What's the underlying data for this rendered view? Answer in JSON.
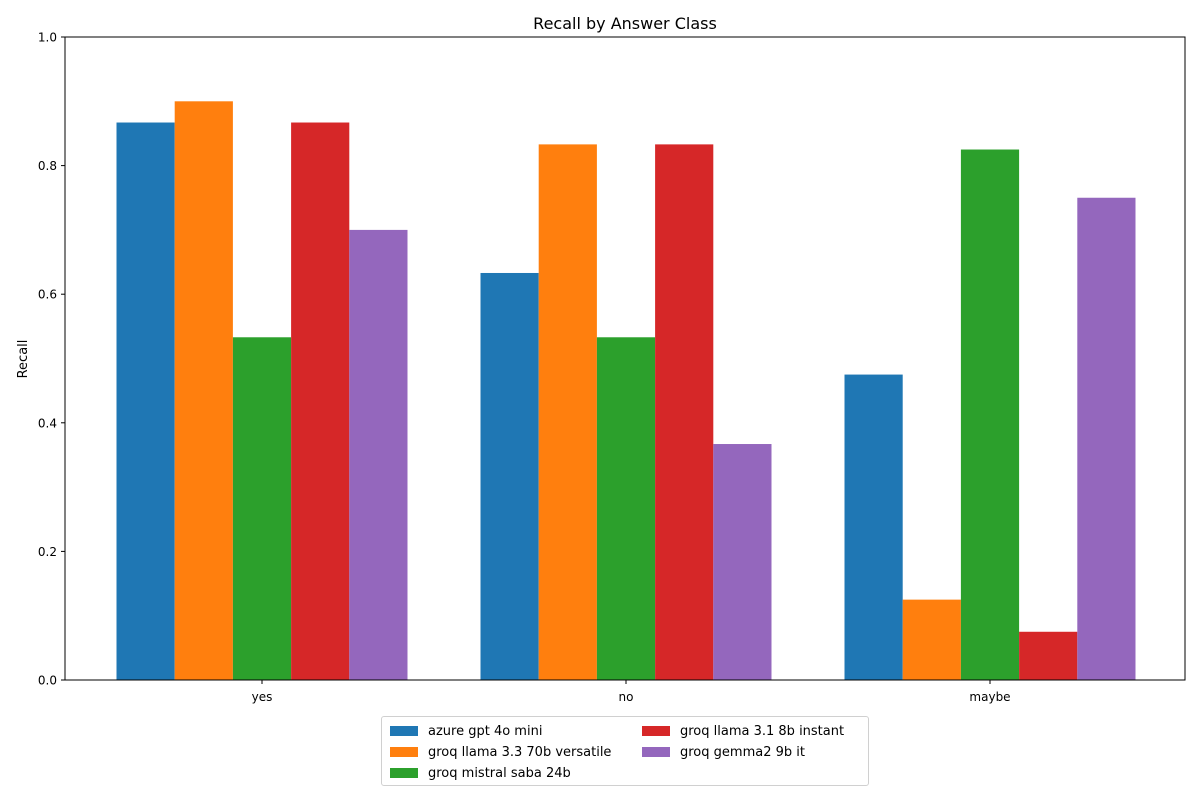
{
  "chart_data": {
    "type": "bar",
    "title": "Recall by Answer Class",
    "xlabel": "",
    "ylabel": "Recall",
    "ylim": [
      0,
      1.0
    ],
    "yticks": [
      "0.0",
      "0.2",
      "0.4",
      "0.6",
      "0.8",
      "1.0"
    ],
    "categories": [
      "yes",
      "no",
      "maybe"
    ],
    "series": [
      {
        "name": "azure gpt 4o mini",
        "color": "#1f77b4",
        "values": [
          0.867,
          0.633,
          0.475
        ]
      },
      {
        "name": "groq llama 3.3 70b versatile",
        "color": "#ff7f0e",
        "values": [
          0.9,
          0.833,
          0.125
        ]
      },
      {
        "name": "groq mistral saba 24b",
        "color": "#2ca02c",
        "values": [
          0.533,
          0.533,
          0.825
        ]
      },
      {
        "name": "groq llama 3.1 8b instant",
        "color": "#d62728",
        "values": [
          0.867,
          0.833,
          0.075
        ]
      },
      {
        "name": "groq gemma2 9b it",
        "color": "#9467bd",
        "values": [
          0.7,
          0.367,
          0.75
        ]
      }
    ],
    "legend_position": "bottom-center",
    "grid": false
  }
}
